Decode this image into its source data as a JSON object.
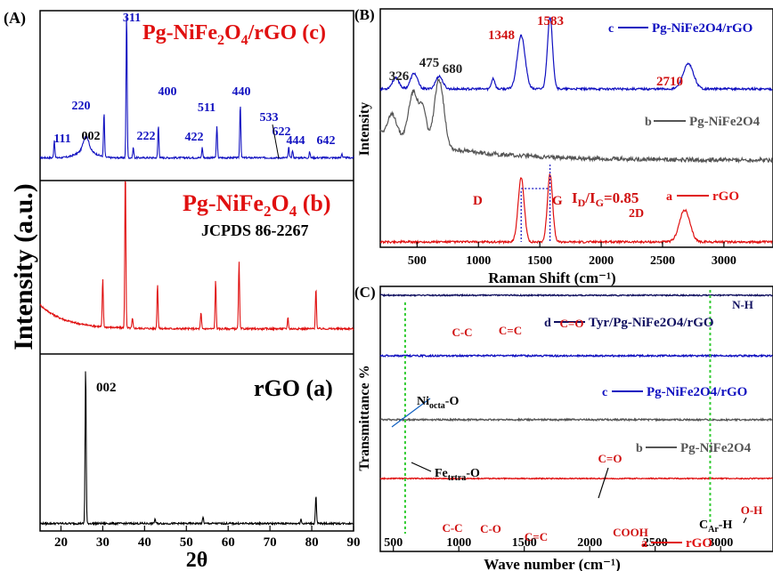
{
  "chart_data": [
    {
      "id": "A",
      "type": "line",
      "panel_label": "(A)",
      "xlabel": "2θ",
      "ylabel": "Intensity (a.u.)",
      "xlim": [
        15,
        90
      ],
      "xticks": [
        20,
        30,
        40,
        50,
        60,
        70,
        80,
        90
      ],
      "subplots": [
        {
          "key": "c",
          "color": "#1010c0",
          "title_main": "Pg-NiFe",
          "title_sub1": "2",
          "title_mid": "O",
          "title_sub2": "4",
          "title_tail": "/rGO  (c)",
          "baseline": 0.08,
          "peaks": [
            {
              "x": 18.4,
              "h": 0.12,
              "label": "111"
            },
            {
              "x": 26.0,
              "h": 0.1,
              "label": "002",
              "color": "#000000",
              "broad": true
            },
            {
              "x": 30.3,
              "h": 0.3,
              "label": "220"
            },
            {
              "x": 35.7,
              "h": 1.0,
              "label": "311"
            },
            {
              "x": 37.3,
              "h": 0.07,
              "label": "222"
            },
            {
              "x": 43.3,
              "h": 0.22,
              "label": "400"
            },
            {
              "x": 53.8,
              "h": 0.07,
              "label": "422"
            },
            {
              "x": 57.3,
              "h": 0.22,
              "label": "511"
            },
            {
              "x": 62.9,
              "h": 0.37,
              "label": "440"
            },
            {
              "x": 74.5,
              "h": 0.07,
              "label": "533"
            },
            {
              "x": 75.4,
              "h": 0.05,
              "label": "622"
            },
            {
              "x": 79.5,
              "h": 0.04,
              "label": "444"
            },
            {
              "x": 87.2,
              "h": 0.03,
              "label": "642"
            }
          ]
        },
        {
          "key": "b",
          "color": "#e01010",
          "title_main": "Pg-NiFe",
          "title_sub1": "2",
          "title_mid": "O",
          "title_sub2": "4",
          "title_tail": " (b)",
          "annotation": "JCPDS  86-2267",
          "baseline": 0.1,
          "peaks": [
            {
              "x": 30.0,
              "h": 0.3
            },
            {
              "x": 35.4,
              "h": 1.0
            },
            {
              "x": 37.1,
              "h": 0.06
            },
            {
              "x": 43.1,
              "h": 0.28
            },
            {
              "x": 53.5,
              "h": 0.1
            },
            {
              "x": 57.0,
              "h": 0.3
            },
            {
              "x": 62.6,
              "h": 0.42
            },
            {
              "x": 74.3,
              "h": 0.07
            },
            {
              "x": 81.0,
              "h": 0.26
            }
          ]
        },
        {
          "key": "a",
          "color": "#000000",
          "title_main": "rGO  (a)",
          "baseline": 0.04,
          "peaks": [
            {
              "x": 25.9,
              "h": 1.0,
              "label": "002"
            },
            {
              "x": 42.5,
              "h": 0.03
            },
            {
              "x": 54.0,
              "h": 0.04
            },
            {
              "x": 77.4,
              "h": 0.03
            },
            {
              "x": 81.0,
              "h": 0.18
            }
          ]
        }
      ]
    },
    {
      "id": "B",
      "type": "line",
      "panel_label": "(B)",
      "xlabel": "Raman Shift (cm⁻¹)",
      "ylabel": "Intensity",
      "xlim": [
        200,
        3400
      ],
      "xticks": [
        500,
        1000,
        1500,
        2000,
        2500,
        3000
      ],
      "peak_labels": [
        {
          "x": 326,
          "label": "326",
          "color": "#222222"
        },
        {
          "x": 475,
          "label": "475",
          "color": "#222222"
        },
        {
          "x": 680,
          "label": "680",
          "color": "#222222"
        },
        {
          "x": 1348,
          "label": "1348",
          "color": "#d01010"
        },
        {
          "x": 1583,
          "label": "1583",
          "color": "#d01010"
        },
        {
          "x": 2710,
          "label": "2710",
          "color": "#d01010"
        }
      ],
      "ratio_text": "I",
      "ratio_sub1": "D",
      "ratio_mid": "/I",
      "ratio_sub2": "G",
      "ratio_value": "=0.85",
      "d_label": "D",
      "g_label": "G",
      "label_2d": "2D",
      "series": [
        {
          "name": "Pg-NiFe2O4/rGO",
          "key": "c",
          "color": "#1010c0",
          "peaks": [
            {
              "x": 326,
              "h": 0.15,
              "w": 40
            },
            {
              "x": 475,
              "h": 0.22,
              "w": 40
            },
            {
              "x": 680,
              "h": 0.18,
              "w": 40
            },
            {
              "x": 1120,
              "h": 0.15,
              "w": 20
            },
            {
              "x": 1348,
              "h": 0.75,
              "w": 45
            },
            {
              "x": 1583,
              "h": 1.0,
              "w": 30
            },
            {
              "x": 2710,
              "h": 0.35,
              "w": 60
            }
          ]
        },
        {
          "name": "Pg-NiFe2O4",
          "key": "b",
          "color": "#555555",
          "peaks": [
            {
              "x": 300,
              "h": 0.3,
              "w": 50
            },
            {
              "x": 470,
              "h": 0.7,
              "w": 55
            },
            {
              "x": 550,
              "h": 0.45,
              "w": 40
            },
            {
              "x": 680,
              "h": 0.95,
              "w": 55
            }
          ]
        },
        {
          "name": "rGO",
          "key": "a",
          "color": "#e01010",
          "peaks": [
            {
              "x": 1348,
              "h": 0.9,
              "w": 35
            },
            {
              "x": 1583,
              "h": 0.95,
              "w": 30
            },
            {
              "x": 2680,
              "h": 0.45,
              "w": 60
            }
          ]
        }
      ]
    },
    {
      "id": "C",
      "type": "line",
      "panel_label": "(C)",
      "xlabel": "Wave number (cm⁻¹)",
      "ylabel": "Transmittance %",
      "xlim": [
        400,
        3400
      ],
      "xticks": [
        500,
        1000,
        1500,
        2000,
        2500,
        3000
      ],
      "series": [
        {
          "name": "Tyr/Pg-NiFe2O4/rGO",
          "key": "d",
          "color": "#101060",
          "dips": [
            {
              "x": 590,
              "d": 0.85,
              "w": 60
            },
            {
              "x": 750,
              "d": 0.2,
              "w": 30
            },
            {
              "x": 1050,
              "d": 0.55,
              "w": 40
            },
            {
              "x": 1260,
              "d": 0.45,
              "w": 35
            },
            {
              "x": 1480,
              "d": 0.3,
              "w": 35
            },
            {
              "x": 1640,
              "d": 0.4,
              "w": 40
            },
            {
              "x": 2920,
              "d": 0.15,
              "w": 25
            },
            {
              "x": 3300,
              "d": 0.25,
              "w": 60
            }
          ]
        },
        {
          "name": "Pg-NiFe2O4/rGO",
          "key": "c",
          "color": "#1010c0",
          "dips": [
            {
              "x": 590,
              "d": 1.0,
              "w": 60
            },
            {
              "x": 1620,
              "d": 0.25,
              "w": 60
            },
            {
              "x": 2920,
              "d": 0.12,
              "w": 25
            }
          ]
        },
        {
          "name": "Pg-NiFe2O4",
          "key": "b",
          "color": "#555555",
          "dips": [
            {
              "x": 450,
              "d": 0.5,
              "w": 30
            },
            {
              "x": 570,
              "d": 1.3,
              "w": 55
            },
            {
              "x": 1620,
              "d": 0.12,
              "w": 50
            }
          ]
        },
        {
          "name": "rGO",
          "key": "a",
          "color": "#e01010",
          "dips": [
            {
              "x": 580,
              "d": 0.5,
              "w": 40
            },
            {
              "x": 1000,
              "d": 0.45,
              "w": 50
            },
            {
              "x": 1300,
              "d": 0.35,
              "w": 40
            },
            {
              "x": 1460,
              "d": 0.3,
              "w": 40
            },
            {
              "x": 1700,
              "d": 0.25,
              "w": 30
            },
            {
              "x": 2330,
              "d": 0.7,
              "w": 20
            },
            {
              "x": 2920,
              "d": 0.25,
              "w": 25
            },
            {
              "x": 3200,
              "d": 0.2,
              "w": 60
            }
          ]
        }
      ],
      "band_labels": [
        {
          "text": "C-C",
          "color": "#d01010"
        },
        {
          "text": "C=C",
          "color": "#d01010"
        },
        {
          "text": "C=O",
          "color": "#d01010"
        },
        {
          "text": "N-H",
          "color": "#101060"
        },
        {
          "text": "C-C",
          "color": "#d01010"
        },
        {
          "text": "C-O",
          "color": "#d01010"
        },
        {
          "text": "C=C",
          "color": "#d01010"
        },
        {
          "text": "C=O",
          "color": "#d01010"
        },
        {
          "text": "COOH",
          "color": "#d01010"
        },
        {
          "text": "O-H",
          "color": "#d01010"
        }
      ],
      "ni_label_main": "Ni",
      "ni_label_sub": "octa",
      "ni_label_tail": "-O",
      "fe_label_main": "Fe",
      "fe_label_sub": "trtra",
      "fe_label_tail": "-O",
      "car_label_main": "C",
      "car_label_sub": "Ar",
      "car_label_tail": "-H"
    }
  ]
}
